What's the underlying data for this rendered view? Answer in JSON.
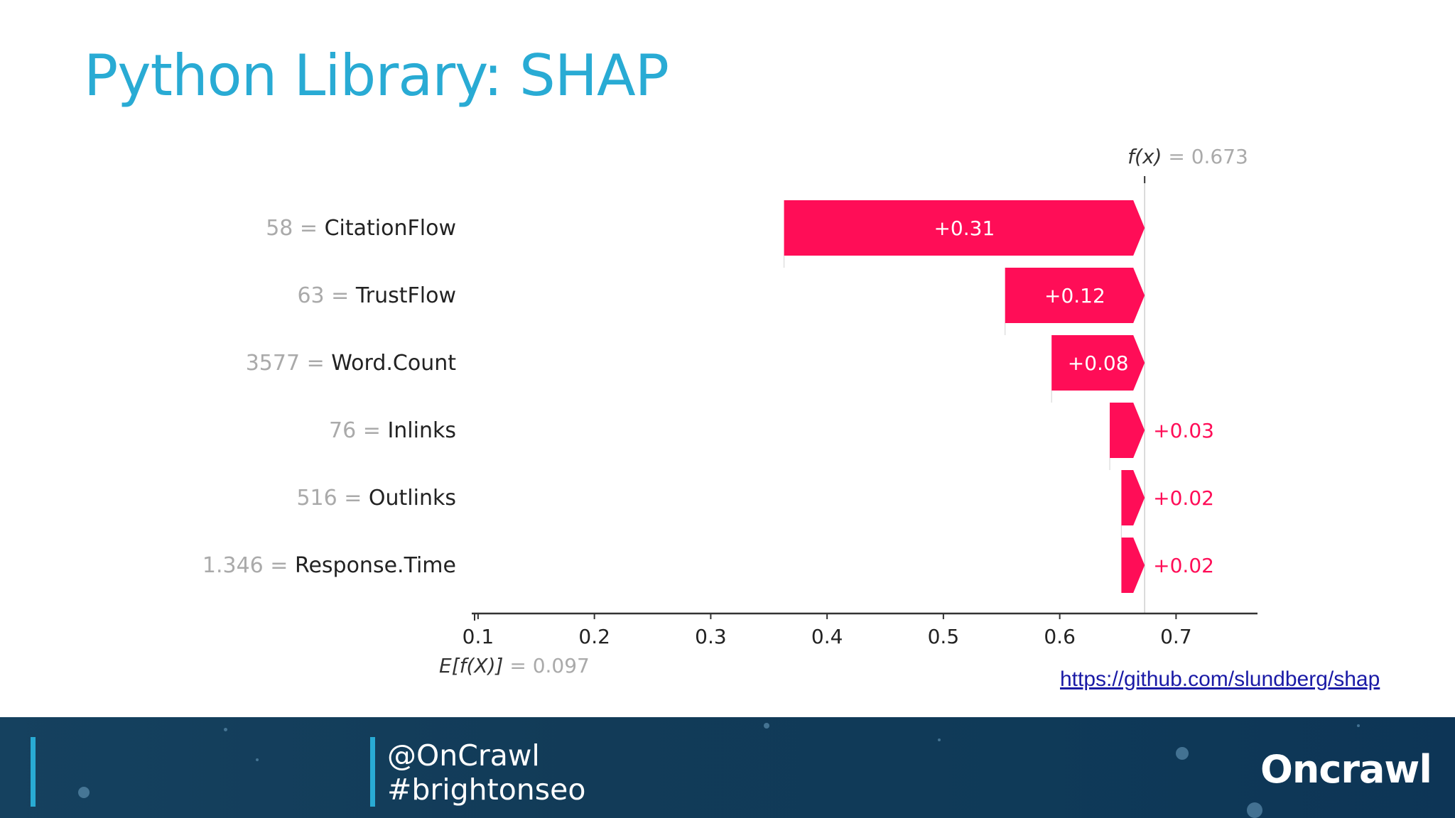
{
  "slide": {
    "title": "Python Library: SHAP",
    "link_text": "https://github.com/slundberg/shap"
  },
  "footer": {
    "handle": "@OnCrawl",
    "hashtag": "#brightonseo",
    "logo": "Oncrawl"
  },
  "colors": {
    "title": "#29abd4",
    "bar": "#ff0d57",
    "footer_bg": "#123b58",
    "accent_bar": "#29abd4"
  },
  "chart_data": {
    "type": "bar",
    "subtype": "shap-waterfall",
    "base_value": 0.097,
    "output_value": 0.673,
    "base_label": "E[f(X)] = 0.097",
    "output_label": "f(x) = 0.673",
    "xlim": [
      0.097,
      0.77
    ],
    "x_ticks": [
      0.1,
      0.2,
      0.3,
      0.4,
      0.5,
      0.6,
      0.7
    ],
    "x_tick_labels": [
      "0.1",
      "0.2",
      "0.3",
      "0.4",
      "0.5",
      "0.6",
      "0.7"
    ],
    "grid": false,
    "features": [
      {
        "value": "58",
        "name": "CitationFlow",
        "contribution": 0.31,
        "label": "+0.31"
      },
      {
        "value": "63",
        "name": "TrustFlow",
        "contribution": 0.12,
        "label": "+0.12"
      },
      {
        "value": "3577",
        "name": "Word.Count",
        "contribution": 0.08,
        "label": "+0.08"
      },
      {
        "value": "76",
        "name": "Inlinks",
        "contribution": 0.03,
        "label": "+0.03"
      },
      {
        "value": "516",
        "name": "Outlinks",
        "contribution": 0.02,
        "label": "+0.02"
      },
      {
        "value": "1.346",
        "name": "Response.Time",
        "contribution": 0.02,
        "label": "+0.02"
      }
    ]
  }
}
